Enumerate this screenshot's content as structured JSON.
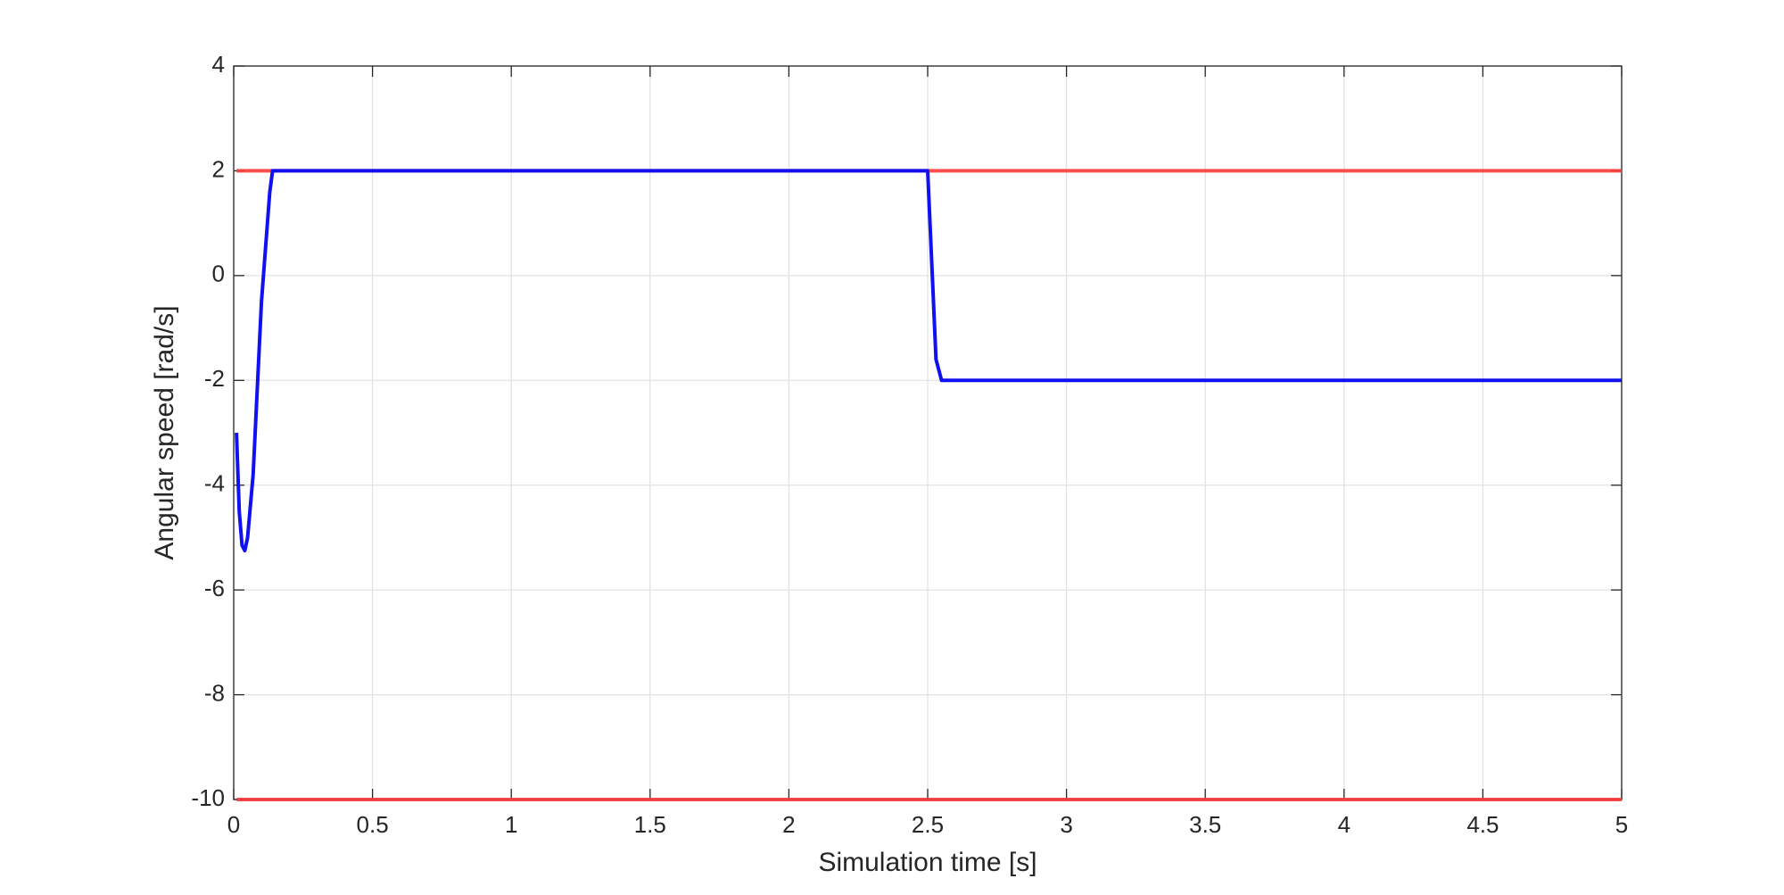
{
  "chart_data": {
    "type": "line",
    "xlabel": "Simulation time [s]",
    "ylabel": "Angular speed [rad/s]",
    "x": [
      0.01,
      0.02,
      0.03,
      0.04,
      0.05,
      0.07,
      0.1,
      0.13,
      0.14,
      2.5,
      2.53,
      2.55,
      5
    ],
    "series": [
      {
        "color": "#ff3b3b",
        "values": [
          2,
          2,
          2,
          2,
          2,
          2,
          2,
          2,
          2,
          2,
          2,
          2,
          2
        ]
      },
      {
        "color": "#ff3b3b",
        "values": [
          -10,
          -10,
          -10,
          -10,
          -10,
          -10,
          -10,
          -10,
          -10,
          -10,
          -10,
          -10,
          -10
        ]
      },
      {
        "color": "#1010f0",
        "values": [
          -3,
          -4.5,
          -5.15,
          -5.25,
          -5.0,
          -3.8,
          -0.5,
          1.6,
          2,
          2,
          -1.6,
          -2,
          -2
        ]
      }
    ],
    "xlim": [
      0,
      5
    ],
    "xticks": [
      0,
      0.5,
      1,
      1.5,
      2,
      2.5,
      3,
      3.5,
      4,
      4.5,
      5
    ],
    "ylim": [
      -10,
      4
    ],
    "yticks": [
      -10,
      -8,
      -6,
      -4,
      -2,
      0,
      2,
      4
    ],
    "grid": true
  }
}
